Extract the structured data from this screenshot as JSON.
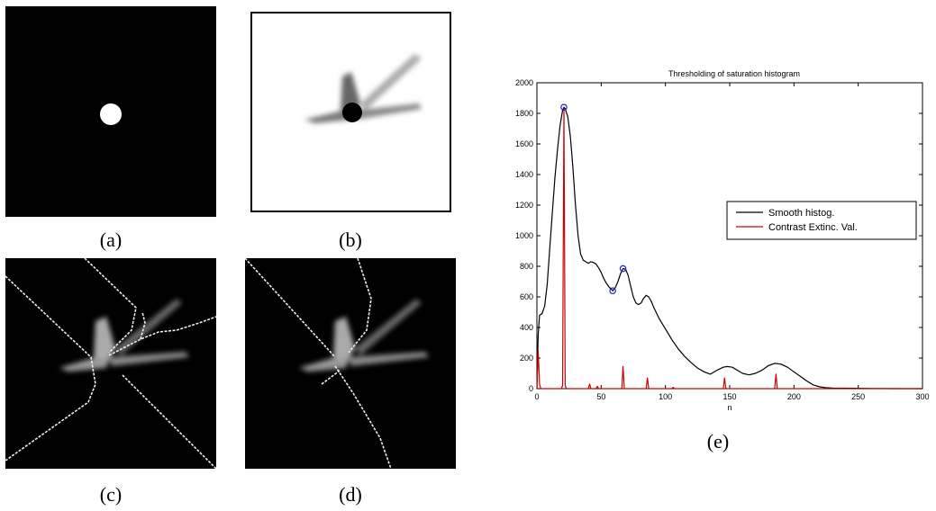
{
  "captions": {
    "a": "(a)",
    "b": "(b)",
    "c": "(c)",
    "d": "(d)",
    "e": "(e)"
  },
  "chart_data": {
    "type": "line",
    "title": "Thresholding of saturation histogram",
    "xlabel": "n",
    "ylabel": "",
    "xlim": [
      0,
      300
    ],
    "ylim": [
      0,
      2000
    ],
    "x_ticks": [
      0,
      50,
      100,
      150,
      200,
      250,
      300
    ],
    "y_ticks": [
      0,
      200,
      400,
      600,
      800,
      1000,
      1200,
      1400,
      1600,
      1800,
      2000
    ],
    "legend_position": "right",
    "grid": false,
    "series": [
      {
        "name": "Smooth histog.",
        "color": "#000000",
        "points": [
          [
            0,
            0
          ],
          [
            1,
            350
          ],
          [
            2,
            480
          ],
          [
            4,
            490
          ],
          [
            6,
            540
          ],
          [
            8,
            680
          ],
          [
            10,
            920
          ],
          [
            12,
            1150
          ],
          [
            14,
            1380
          ],
          [
            16,
            1560
          ],
          [
            18,
            1720
          ],
          [
            20,
            1820
          ],
          [
            21,
            1840
          ],
          [
            22,
            1830
          ],
          [
            24,
            1780
          ],
          [
            26,
            1650
          ],
          [
            28,
            1450
          ],
          [
            30,
            1200
          ],
          [
            32,
            1000
          ],
          [
            34,
            880
          ],
          [
            36,
            840
          ],
          [
            38,
            830
          ],
          [
            40,
            820
          ],
          [
            42,
            830
          ],
          [
            44,
            825
          ],
          [
            46,
            815
          ],
          [
            48,
            790
          ],
          [
            50,
            760
          ],
          [
            52,
            720
          ],
          [
            54,
            690
          ],
          [
            56,
            665
          ],
          [
            58,
            650
          ],
          [
            59,
            640
          ],
          [
            61,
            660
          ],
          [
            63,
            700
          ],
          [
            65,
            750
          ],
          [
            67,
            785
          ],
          [
            69,
            780
          ],
          [
            71,
            740
          ],
          [
            73,
            670
          ],
          [
            75,
            600
          ],
          [
            77,
            560
          ],
          [
            79,
            550
          ],
          [
            81,
            560
          ],
          [
            83,
            590
          ],
          [
            85,
            610
          ],
          [
            87,
            600
          ],
          [
            89,
            570
          ],
          [
            91,
            530
          ],
          [
            95,
            460
          ],
          [
            100,
            390
          ],
          [
            105,
            320
          ],
          [
            110,
            260
          ],
          [
            115,
            210
          ],
          [
            120,
            170
          ],
          [
            125,
            135
          ],
          [
            130,
            110
          ],
          [
            135,
            95
          ],
          [
            140,
            120
          ],
          [
            145,
            140
          ],
          [
            148,
            145
          ],
          [
            152,
            140
          ],
          [
            156,
            120
          ],
          [
            160,
            100
          ],
          [
            165,
            90
          ],
          [
            170,
            100
          ],
          [
            175,
            120
          ],
          [
            180,
            150
          ],
          [
            185,
            165
          ],
          [
            190,
            160
          ],
          [
            195,
            140
          ],
          [
            200,
            110
          ],
          [
            205,
            80
          ],
          [
            210,
            50
          ],
          [
            215,
            25
          ],
          [
            220,
            12
          ],
          [
            225,
            6
          ],
          [
            230,
            4
          ],
          [
            240,
            3
          ],
          [
            260,
            1
          ],
          [
            280,
            0
          ],
          [
            300,
            0
          ]
        ]
      },
      {
        "name": "Contrast Extinc. Val.",
        "color": "#cc0000",
        "points": [
          [
            0,
            0
          ],
          [
            1,
            250
          ],
          [
            2,
            30
          ],
          [
            3,
            0
          ],
          [
            19,
            0
          ],
          [
            20,
            20
          ],
          [
            21,
            1830
          ],
          [
            22,
            20
          ],
          [
            23,
            0
          ],
          [
            40,
            0
          ],
          [
            41,
            30
          ],
          [
            42,
            0
          ],
          [
            46,
            0
          ],
          [
            47,
            15
          ],
          [
            48,
            0
          ],
          [
            66,
            0
          ],
          [
            67,
            145
          ],
          [
            68,
            0
          ],
          [
            85,
            0
          ],
          [
            86,
            70
          ],
          [
            87,
            0
          ],
          [
            105,
            0
          ],
          [
            106,
            8
          ],
          [
            107,
            0
          ],
          [
            145,
            0
          ],
          [
            146,
            70
          ],
          [
            147,
            0
          ],
          [
            185,
            0
          ],
          [
            186,
            95
          ],
          [
            187,
            0
          ],
          [
            300,
            0
          ]
        ]
      }
    ],
    "markers": {
      "color": "#2222cc",
      "points": [
        [
          21,
          1840
        ],
        [
          59,
          640
        ],
        [
          67,
          785
        ]
      ]
    }
  }
}
